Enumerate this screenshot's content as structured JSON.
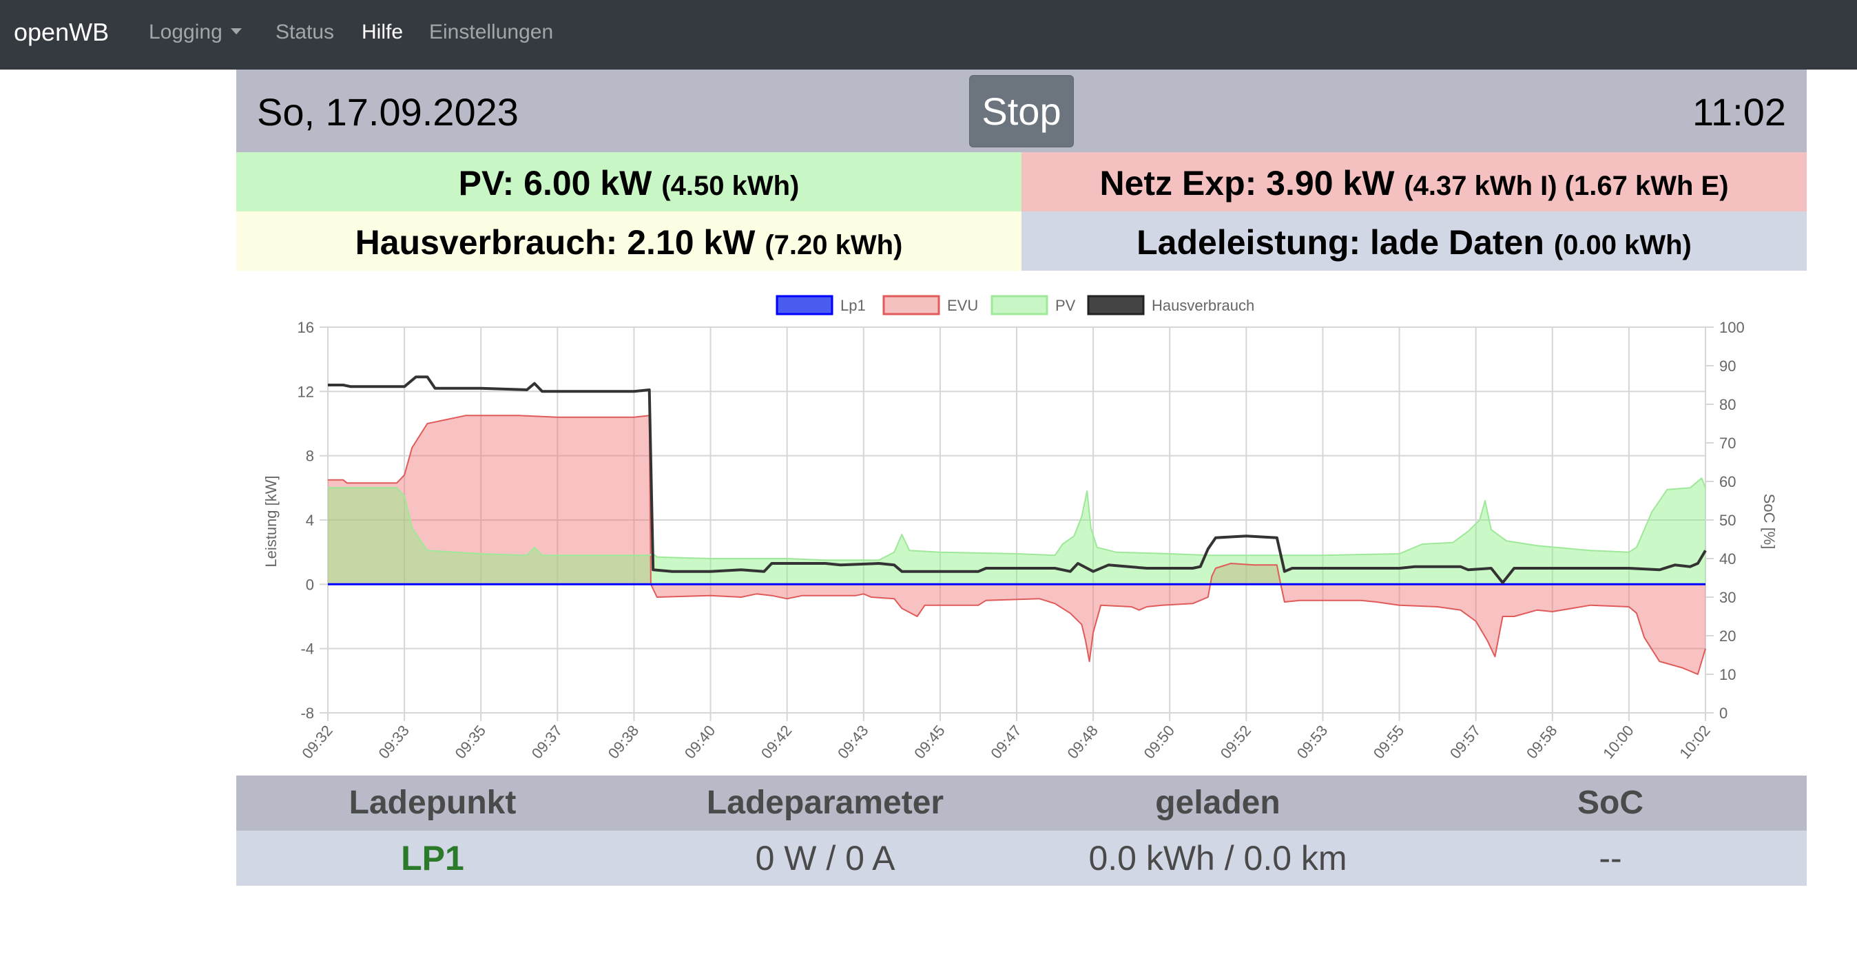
{
  "navbar": {
    "brand": "openWB",
    "items": [
      {
        "label": "Logging",
        "dropdown": true
      },
      {
        "label": "Status"
      },
      {
        "label": "Hilfe",
        "active": true
      },
      {
        "label": "Einstellungen"
      }
    ]
  },
  "header": {
    "date": "So, 17.09.2023",
    "stop_label": "Stop",
    "time": "11:02"
  },
  "summary": {
    "pv_main": "PV: 6.00 kW",
    "pv_sub": "(4.50 kWh)",
    "netz_main": "Netz Exp: 3.90 kW",
    "netz_sub": "(4.37 kWh I) (1.67 kWh E)",
    "haus_main": "Hausverbrauch: 2.10 kW",
    "haus_sub": "(7.20 kWh)",
    "lade_main": "Ladeleistung: lade Daten",
    "lade_sub": "(0.00 kWh)"
  },
  "colors": {
    "pv_bg": "#c8f7c5",
    "netz_bg": "#f4c1c0",
    "haus_bg": "#fefee4",
    "lade_bg": "#d2d7e6",
    "lp1": "#0000ff",
    "evu_line": "#e05a5a",
    "evu_fill": "rgba(240,120,120,0.45)",
    "pv_line": "#9ee89a",
    "pv_fill": "rgba(140,240,130,0.45)",
    "haus": "#333333",
    "lp_name": "#2a7a2a"
  },
  "chart_data": {
    "type": "line",
    "legend": [
      "Lp1",
      "EVU",
      "PV",
      "Hausverbrauch"
    ],
    "legend_position": "top",
    "ylabel": "Leistung [kW]",
    "y2label": "SoC [%]",
    "ylim": [
      -8,
      16
    ],
    "y_ticks": [
      16,
      12,
      8,
      4,
      0,
      -4,
      -8
    ],
    "y2lim": [
      0,
      100
    ],
    "y2_ticks": [
      100,
      90,
      80,
      70,
      60,
      50,
      40,
      30,
      20,
      10,
      0
    ],
    "x_labels": [
      "09:32",
      "09:33",
      "09:35",
      "09:37",
      "09:38",
      "09:40",
      "09:42",
      "09:43",
      "09:45",
      "09:47",
      "09:48",
      "09:50",
      "09:52",
      "09:53",
      "09:55",
      "09:57",
      "09:58",
      "10:00",
      "10:02"
    ],
    "grid": true,
    "x_max": 18,
    "series": [
      {
        "name": "Lp1",
        "points": [
          [
            0,
            0
          ],
          [
            18,
            0
          ]
        ]
      },
      {
        "name": "EVU",
        "points": [
          [
            0,
            6.5
          ],
          [
            0.2,
            6.5
          ],
          [
            0.25,
            6.3
          ],
          [
            0.9,
            6.3
          ],
          [
            1.0,
            6.8
          ],
          [
            1.1,
            8.5
          ],
          [
            1.3,
            10.0
          ],
          [
            1.8,
            10.5
          ],
          [
            2.5,
            10.5
          ],
          [
            3.0,
            10.4
          ],
          [
            4.0,
            10.4
          ],
          [
            4.2,
            10.5
          ],
          [
            4.22,
            0
          ],
          [
            4.3,
            -0.8
          ],
          [
            5.0,
            -0.7
          ],
          [
            5.4,
            -0.8
          ],
          [
            5.6,
            -0.6
          ],
          [
            5.8,
            -0.7
          ],
          [
            6.0,
            -0.9
          ],
          [
            6.2,
            -0.7
          ],
          [
            6.9,
            -0.7
          ],
          [
            7.0,
            -0.6
          ],
          [
            7.1,
            -0.8
          ],
          [
            7.4,
            -0.9
          ],
          [
            7.5,
            -1.5
          ],
          [
            7.7,
            -2.0
          ],
          [
            7.8,
            -1.3
          ],
          [
            8.5,
            -1.3
          ],
          [
            8.6,
            -1.0
          ],
          [
            9.3,
            -0.9
          ],
          [
            9.5,
            -1.2
          ],
          [
            9.7,
            -1.8
          ],
          [
            9.85,
            -2.5
          ],
          [
            9.9,
            -3.5
          ],
          [
            9.95,
            -4.8
          ],
          [
            10.0,
            -3.0
          ],
          [
            10.1,
            -1.3
          ],
          [
            10.5,
            -1.4
          ],
          [
            10.6,
            -1.6
          ],
          [
            10.7,
            -1.4
          ],
          [
            10.9,
            -1.3
          ],
          [
            11.3,
            -1.2
          ],
          [
            11.5,
            -0.8
          ],
          [
            11.55,
            0.5
          ],
          [
            11.6,
            1.0
          ],
          [
            11.8,
            1.3
          ],
          [
            12.1,
            1.2
          ],
          [
            12.4,
            1.2
          ],
          [
            12.45,
            0
          ],
          [
            12.5,
            -1.1
          ],
          [
            12.7,
            -1.0
          ],
          [
            13.5,
            -1.0
          ],
          [
            13.7,
            -1.1
          ],
          [
            14.0,
            -1.3
          ],
          [
            14.5,
            -1.4
          ],
          [
            14.8,
            -1.6
          ],
          [
            15.0,
            -2.3
          ],
          [
            15.15,
            -3.5
          ],
          [
            15.25,
            -4.5
          ],
          [
            15.35,
            -2.0
          ],
          [
            15.5,
            -2.0
          ],
          [
            15.8,
            -1.6
          ],
          [
            16.0,
            -1.7
          ],
          [
            16.5,
            -1.3
          ],
          [
            17.0,
            -1.4
          ],
          [
            17.1,
            -1.8
          ],
          [
            17.2,
            -3.3
          ],
          [
            17.4,
            -4.8
          ],
          [
            17.7,
            -5.2
          ],
          [
            17.9,
            -5.6
          ],
          [
            18.0,
            -4.0
          ]
        ]
      },
      {
        "name": "PV",
        "points": [
          [
            0,
            6.0
          ],
          [
            0.9,
            6.0
          ],
          [
            1.0,
            5.5
          ],
          [
            1.1,
            3.5
          ],
          [
            1.3,
            2.1
          ],
          [
            2.0,
            1.9
          ],
          [
            2.6,
            1.8
          ],
          [
            2.7,
            2.3
          ],
          [
            2.8,
            1.8
          ],
          [
            4.2,
            1.8
          ],
          [
            4.25,
            1.9
          ],
          [
            4.3,
            1.7
          ],
          [
            5.0,
            1.6
          ],
          [
            6.0,
            1.6
          ],
          [
            6.5,
            1.5
          ],
          [
            7.2,
            1.5
          ],
          [
            7.4,
            2.0
          ],
          [
            7.5,
            3.1
          ],
          [
            7.6,
            2.1
          ],
          [
            8.0,
            2.0
          ],
          [
            9.0,
            1.9
          ],
          [
            9.5,
            1.8
          ],
          [
            9.6,
            2.5
          ],
          [
            9.75,
            3.0
          ],
          [
            9.85,
            4.2
          ],
          [
            9.92,
            5.8
          ],
          [
            9.97,
            3.5
          ],
          [
            10.05,
            2.3
          ],
          [
            10.3,
            2.0
          ],
          [
            11.0,
            1.9
          ],
          [
            11.5,
            1.8
          ],
          [
            13.0,
            1.8
          ],
          [
            14.0,
            1.9
          ],
          [
            14.3,
            2.5
          ],
          [
            14.7,
            2.6
          ],
          [
            14.9,
            3.3
          ],
          [
            15.05,
            4.0
          ],
          [
            15.12,
            5.2
          ],
          [
            15.2,
            3.4
          ],
          [
            15.4,
            2.7
          ],
          [
            15.8,
            2.4
          ],
          [
            16.5,
            2.1
          ],
          [
            17.0,
            2.0
          ],
          [
            17.1,
            2.3
          ],
          [
            17.3,
            4.5
          ],
          [
            17.5,
            5.9
          ],
          [
            17.8,
            6.0
          ],
          [
            17.95,
            6.6
          ],
          [
            18.0,
            6.0
          ]
        ]
      },
      {
        "name": "Hausverbrauch",
        "points": [
          [
            0,
            12.4
          ],
          [
            0.2,
            12.4
          ],
          [
            0.3,
            12.3
          ],
          [
            1.0,
            12.3
          ],
          [
            1.15,
            12.9
          ],
          [
            1.3,
            12.9
          ],
          [
            1.4,
            12.2
          ],
          [
            2.0,
            12.2
          ],
          [
            2.6,
            12.1
          ],
          [
            2.7,
            12.5
          ],
          [
            2.8,
            12.0
          ],
          [
            3.3,
            12.0
          ],
          [
            4.0,
            12.0
          ],
          [
            4.2,
            12.1
          ],
          [
            4.25,
            0.9
          ],
          [
            4.5,
            0.8
          ],
          [
            5.0,
            0.8
          ],
          [
            5.4,
            0.9
          ],
          [
            5.7,
            0.8
          ],
          [
            5.8,
            1.3
          ],
          [
            6.5,
            1.3
          ],
          [
            6.7,
            1.2
          ],
          [
            7.2,
            1.3
          ],
          [
            7.4,
            1.2
          ],
          [
            7.5,
            0.8
          ],
          [
            8.0,
            0.8
          ],
          [
            8.5,
            0.8
          ],
          [
            8.6,
            1.0
          ],
          [
            9.5,
            1.0
          ],
          [
            9.7,
            0.8
          ],
          [
            9.8,
            1.3
          ],
          [
            10.0,
            0.8
          ],
          [
            10.2,
            1.2
          ],
          [
            10.7,
            1.0
          ],
          [
            11.3,
            1.0
          ],
          [
            11.4,
            1.1
          ],
          [
            11.5,
            2.2
          ],
          [
            11.6,
            2.9
          ],
          [
            12.0,
            3.0
          ],
          [
            12.4,
            2.9
          ],
          [
            12.5,
            0.8
          ],
          [
            12.6,
            1.0
          ],
          [
            13.5,
            1.0
          ],
          [
            14.0,
            1.0
          ],
          [
            14.2,
            1.1
          ],
          [
            14.8,
            1.1
          ],
          [
            14.9,
            0.9
          ],
          [
            15.2,
            1.0
          ],
          [
            15.35,
            0.1
          ],
          [
            15.5,
            1.0
          ],
          [
            16.0,
            1.0
          ],
          [
            17.0,
            1.0
          ],
          [
            17.4,
            0.9
          ],
          [
            17.6,
            1.2
          ],
          [
            17.8,
            1.1
          ],
          [
            17.9,
            1.3
          ],
          [
            18.0,
            2.1
          ]
        ]
      }
    ]
  },
  "table": {
    "headers": [
      "Ladepunkt",
      "Ladeparameter",
      "geladen",
      "SoC"
    ],
    "row": {
      "name": "LP1",
      "parameter": "0 W / 0 A",
      "geladen": "0.0 kWh / 0.0 km",
      "soc": "--"
    }
  }
}
